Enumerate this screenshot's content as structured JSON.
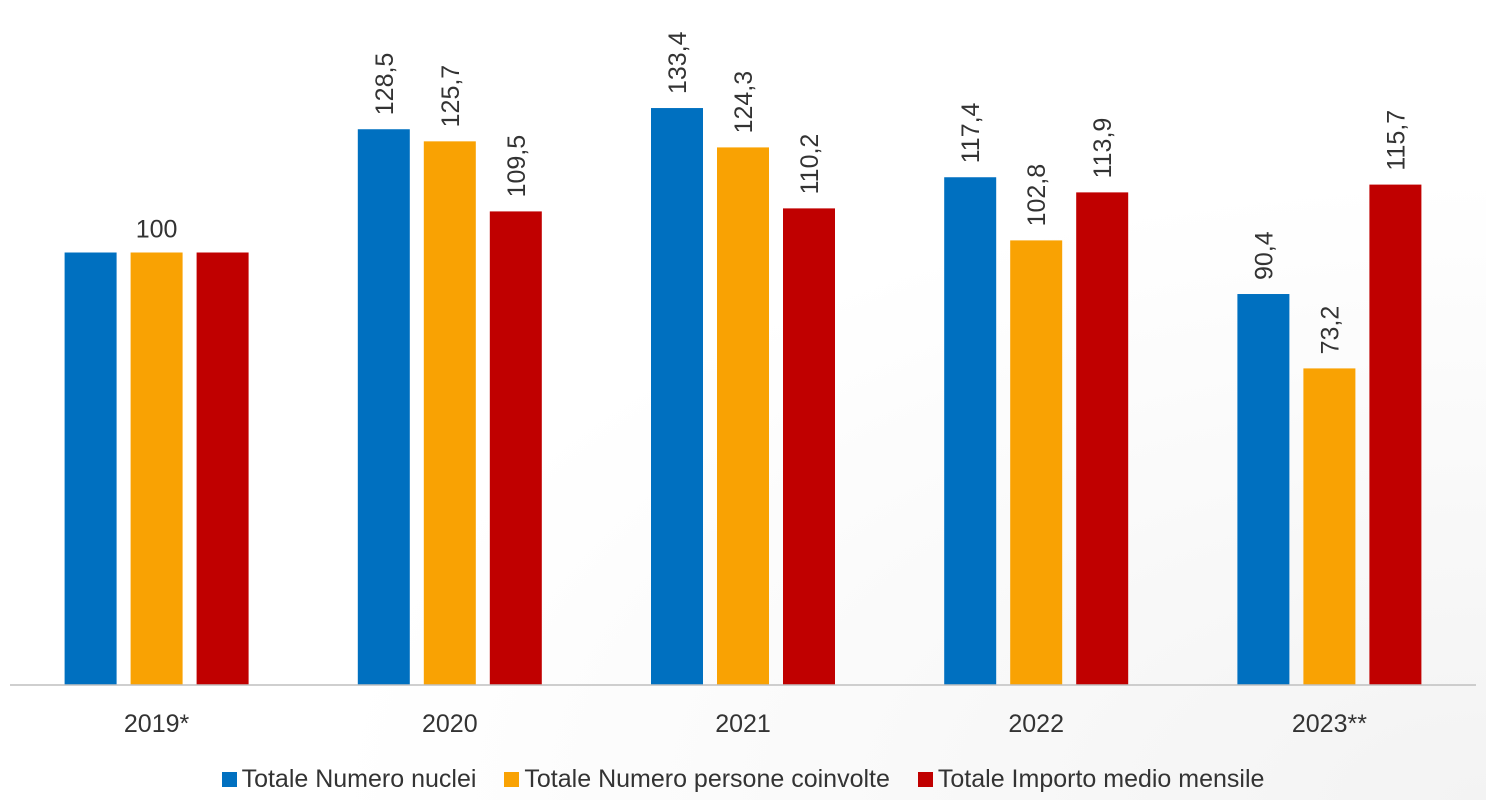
{
  "chart_data": {
    "type": "bar",
    "categories": [
      "2019*",
      "2020",
      "2021",
      "2022",
      "2023**"
    ],
    "series": [
      {
        "name": "Totale Numero nuclei",
        "color": "#0070c0",
        "values": [
          100,
          128.5,
          133.4,
          117.4,
          90.4
        ],
        "labels": [
          "",
          "128,5",
          "133,4",
          "117,4",
          "90,4"
        ]
      },
      {
        "name": "Totale Numero persone coinvolte",
        "color": "#f9a203",
        "values": [
          100,
          125.7,
          124.3,
          102.8,
          73.2
        ],
        "labels": [
          "100",
          "125,7",
          "124,3",
          "102,8",
          "73,2"
        ]
      },
      {
        "name": "Totale Importo medio mensile",
        "color": "#c00000",
        "values": [
          100,
          109.5,
          110.2,
          113.9,
          115.7
        ],
        "labels": [
          "",
          "109,5",
          "110,2",
          "113,9",
          "115,7"
        ]
      }
    ],
    "ylim": [
      0,
      150
    ],
    "grid": false,
    "legend_position": "bottom"
  }
}
